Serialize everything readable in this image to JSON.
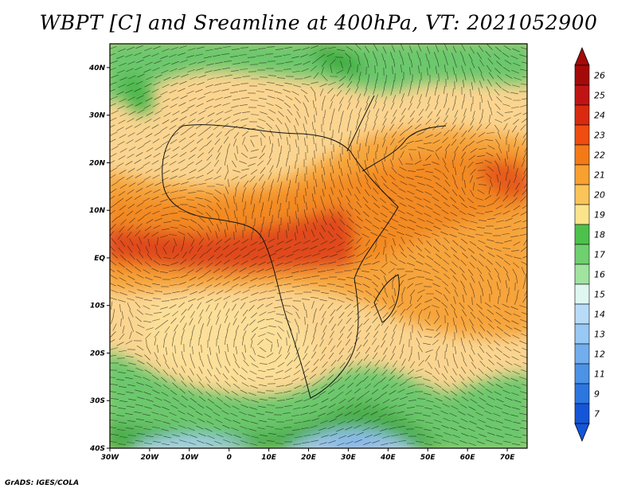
{
  "title": "WBPT [C] and Sreamline at 400hPa, VT: 2021052900",
  "credit": "GrADS: IGES/COLA",
  "map": {
    "lon_range": [
      -30,
      75
    ],
    "lat_range": [
      -40,
      45
    ],
    "lon_ticks": [
      {
        "value": -30,
        "label": "30W"
      },
      {
        "value": -20,
        "label": "20W"
      },
      {
        "value": -10,
        "label": "10W"
      },
      {
        "value": 0,
        "label": "0"
      },
      {
        "value": 10,
        "label": "10E"
      },
      {
        "value": 20,
        "label": "20E"
      },
      {
        "value": 30,
        "label": "30E"
      },
      {
        "value": 40,
        "label": "40E"
      },
      {
        "value": 50,
        "label": "50E"
      },
      {
        "value": 60,
        "label": "60E"
      },
      {
        "value": 70,
        "label": "70E"
      }
    ],
    "lat_ticks": [
      {
        "value": 40,
        "label": "40N"
      },
      {
        "value": 30,
        "label": "30N"
      },
      {
        "value": 20,
        "label": "20N"
      },
      {
        "value": 10,
        "label": "10N"
      },
      {
        "value": 0,
        "label": "EQ"
      },
      {
        "value": -10,
        "label": "10S"
      },
      {
        "value": -20,
        "label": "20S"
      },
      {
        "value": -30,
        "label": "30S"
      },
      {
        "value": -40,
        "label": "40S"
      }
    ]
  },
  "colorbar": {
    "labels": [
      "26",
      "25",
      "24",
      "23",
      "22",
      "21",
      "20",
      "19",
      "18",
      "17",
      "16",
      "15",
      "14",
      "13",
      "12",
      "11",
      "9",
      "7"
    ],
    "colors": [
      "#a50a0a",
      "#c01414",
      "#d92a10",
      "#ef4c10",
      "#f47a18",
      "#f8a030",
      "#fbc458",
      "#fce38c",
      "#4cc24c",
      "#6fd06f",
      "#a0e4a0",
      "#def7f0",
      "#b8dcf8",
      "#98c8f4",
      "#72aeee",
      "#4c92e6",
      "#2c76e0",
      "#1456d8"
    ]
  }
}
